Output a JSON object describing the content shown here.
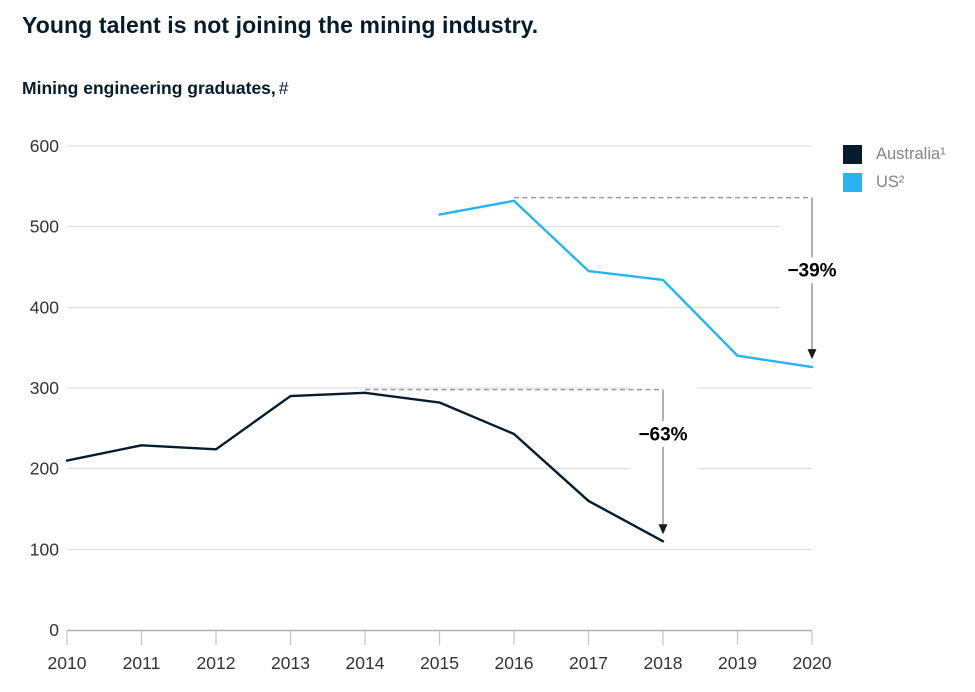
{
  "chart_data": {
    "type": "line",
    "title": "Young talent is not joining the mining industry.",
    "subtitle": "Mining engineering graduates,",
    "subtitle_unit": "#",
    "x_ticks": [
      2010,
      2011,
      2012,
      2013,
      2014,
      2015,
      2016,
      2017,
      2018,
      2019,
      2020
    ],
    "y_ticks": [
      0,
      100,
      200,
      300,
      400,
      500,
      600
    ],
    "ylim": [
      0,
      600
    ],
    "grid": true,
    "legend_position": "top-right",
    "series": [
      {
        "name": "Australia¹",
        "color": "#051c2c",
        "x": [
          2010,
          2011,
          2012,
          2013,
          2014,
          2015,
          2016,
          2017,
          2018
        ],
        "values": [
          210,
          229,
          224,
          290,
          294,
          282,
          243,
          160,
          110
        ]
      },
      {
        "name": "US²",
        "color": "#29b3f0",
        "x": [
          2015,
          2016,
          2017,
          2018,
          2019,
          2020
        ],
        "values": [
          515,
          532,
          445,
          434,
          340,
          326
        ]
      }
    ],
    "annotations": [
      {
        "label": "−63%",
        "from_x": 2014,
        "from_value": 298,
        "to_x": 2018,
        "tip_value": 120,
        "label_value": 243
      },
      {
        "label": "−39%",
        "from_x": 2016,
        "from_value": 536,
        "to_x": 2020,
        "tip_value": 337,
        "label_value": 446
      }
    ],
    "style": {
      "gridline_color": "#d9d9d9",
      "axis_color": "#b0b0b0",
      "tick_color": "#c4c4c4",
      "axis_label_color": "#333333",
      "dash_color": "#9b9b9b",
      "arrow_color": "#8f8f8f",
      "arrowhead_color": "#1a1a1a",
      "annotation_text_color": "#000000"
    }
  }
}
